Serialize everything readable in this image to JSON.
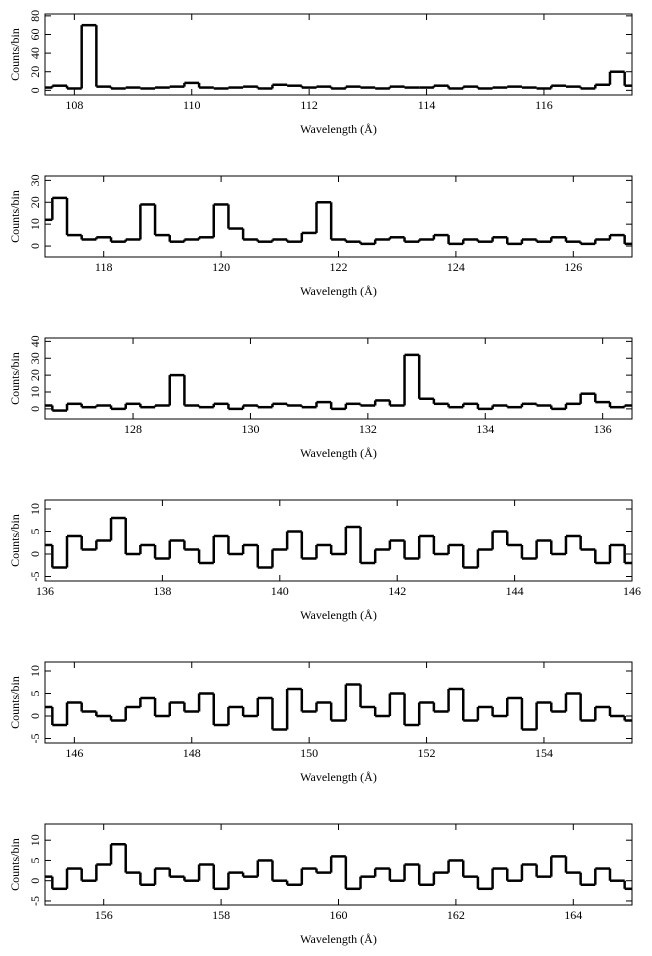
{
  "chart_data": [
    {
      "type": "line",
      "step": true,
      "color": "#000000",
      "xlabel": "Wavelength (Å)",
      "ylabel": "Counts/bin",
      "xlim": [
        107.5,
        117.5
      ],
      "xticks": [
        108,
        110,
        112,
        114,
        116
      ],
      "ylim": [
        -5,
        82
      ],
      "yticks": [
        0,
        20,
        40,
        60,
        80
      ],
      "x": [
        107.5,
        107.75,
        108,
        108.25,
        108.5,
        108.75,
        109,
        109.25,
        109.5,
        109.75,
        110,
        110.25,
        110.5,
        110.75,
        111,
        111.25,
        111.5,
        111.75,
        112,
        112.25,
        112.5,
        112.75,
        113,
        113.25,
        113.5,
        113.75,
        114,
        114.25,
        114.5,
        114.75,
        115,
        115.25,
        115.5,
        115.75,
        116,
        116.25,
        116.5,
        116.75,
        117,
        117.25,
        117.5
      ],
      "values": [
        3,
        5,
        2,
        70,
        4,
        2,
        3,
        2,
        3,
        4,
        8,
        3,
        2,
        3,
        4,
        2,
        6,
        5,
        3,
        4,
        2,
        4,
        3,
        2,
        4,
        3,
        3,
        5,
        2,
        4,
        2,
        3,
        4,
        3,
        2,
        5,
        4,
        2,
        6,
        20,
        5
      ]
    },
    {
      "type": "line",
      "step": true,
      "color": "#000000",
      "xlabel": "Wavelength (Å)",
      "ylabel": "Counts/bin",
      "xlim": [
        117,
        127
      ],
      "xticks": [
        118,
        120,
        122,
        124,
        126
      ],
      "ylim": [
        -5,
        32
      ],
      "yticks": [
        0,
        10,
        20,
        30
      ],
      "x": [
        117,
        117.25,
        117.5,
        117.75,
        118,
        118.25,
        118.5,
        118.75,
        119,
        119.25,
        119.5,
        119.75,
        120,
        120.25,
        120.5,
        120.75,
        121,
        121.25,
        121.5,
        121.75,
        122,
        122.25,
        122.5,
        122.75,
        123,
        123.25,
        123.5,
        123.75,
        124,
        124.25,
        124.5,
        124.75,
        125,
        125.25,
        125.5,
        125.75,
        126,
        126.25,
        126.5,
        126.75,
        127
      ],
      "values": [
        12,
        22,
        5,
        3,
        4,
        2,
        3,
        19,
        5,
        2,
        3,
        4,
        19,
        8,
        3,
        2,
        3,
        2,
        6,
        20,
        3,
        2,
        1,
        3,
        4,
        2,
        3,
        5,
        1,
        3,
        2,
        4,
        1,
        3,
        2,
        4,
        2,
        1,
        3,
        5,
        1
      ]
    },
    {
      "type": "line",
      "step": true,
      "color": "#000000",
      "xlabel": "Wavelength (Å)",
      "ylabel": "Counts/bin",
      "xlim": [
        126.5,
        136.5
      ],
      "xticks": [
        128,
        130,
        132,
        134,
        136
      ],
      "ylim": [
        -6,
        42
      ],
      "yticks": [
        0,
        10,
        20,
        30,
        40
      ],
      "x": [
        126.5,
        126.75,
        127,
        127.25,
        127.5,
        127.75,
        128,
        128.25,
        128.5,
        128.75,
        129,
        129.25,
        129.5,
        129.75,
        130,
        130.25,
        130.5,
        130.75,
        131,
        131.25,
        131.5,
        131.75,
        132,
        132.25,
        132.5,
        132.75,
        133,
        133.25,
        133.5,
        133.75,
        134,
        134.25,
        134.5,
        134.75,
        135,
        135.25,
        135.5,
        135.75,
        136,
        136.25,
        136.5
      ],
      "values": [
        2,
        -1,
        3,
        1,
        2,
        0,
        3,
        1,
        2,
        20,
        2,
        1,
        3,
        0,
        2,
        1,
        3,
        2,
        1,
        4,
        0,
        3,
        2,
        5,
        2,
        32,
        6,
        3,
        1,
        3,
        0,
        2,
        1,
        3,
        2,
        0,
        3,
        9,
        4,
        1,
        2
      ]
    },
    {
      "type": "line",
      "step": true,
      "color": "#000000",
      "xlabel": "Wavelength (Å)",
      "ylabel": "Counts/bin",
      "xlim": [
        136,
        146
      ],
      "xticks": [
        136,
        138,
        140,
        142,
        144,
        146
      ],
      "ylim": [
        -6,
        12
      ],
      "yticks": [
        -5,
        0,
        5,
        10
      ],
      "x": [
        136,
        136.25,
        136.5,
        136.75,
        137,
        137.25,
        137.5,
        137.75,
        138,
        138.25,
        138.5,
        138.75,
        139,
        139.25,
        139.5,
        139.75,
        140,
        140.25,
        140.5,
        140.75,
        141,
        141.25,
        141.5,
        141.75,
        142,
        142.25,
        142.5,
        142.75,
        143,
        143.25,
        143.5,
        143.75,
        144,
        144.25,
        144.5,
        144.75,
        145,
        145.25,
        145.5,
        145.75,
        146
      ],
      "values": [
        2,
        -3,
        4,
        1,
        3,
        8,
        0,
        2,
        -1,
        3,
        1,
        -2,
        4,
        0,
        2,
        -3,
        1,
        5,
        -1,
        2,
        0,
        6,
        -2,
        1,
        3,
        -1,
        4,
        0,
        2,
        -3,
        1,
        5,
        2,
        -1,
        3,
        0,
        4,
        1,
        -2,
        2,
        -2
      ]
    },
    {
      "type": "line",
      "step": true,
      "color": "#000000",
      "xlabel": "Wavelength (Å)",
      "ylabel": "Counts/bin",
      "xlim": [
        145.5,
        155.5
      ],
      "xticks": [
        146,
        148,
        150,
        152,
        154
      ],
      "ylim": [
        -6,
        12
      ],
      "yticks": [
        -5,
        0,
        5,
        10
      ],
      "x": [
        145.5,
        145.75,
        146,
        146.25,
        146.5,
        146.75,
        147,
        147.25,
        147.5,
        147.75,
        148,
        148.25,
        148.5,
        148.75,
        149,
        149.25,
        149.5,
        149.75,
        150,
        150.25,
        150.5,
        150.75,
        151,
        151.25,
        151.5,
        151.75,
        152,
        152.25,
        152.5,
        152.75,
        153,
        153.25,
        153.5,
        153.75,
        154,
        154.25,
        154.5,
        154.75,
        155,
        155.25,
        155.5
      ],
      "values": [
        2,
        -2,
        3,
        1,
        0,
        -1,
        2,
        4,
        0,
        3,
        1,
        5,
        -2,
        2,
        0,
        4,
        -3,
        6,
        1,
        3,
        -1,
        7,
        2,
        0,
        5,
        -2,
        3,
        1,
        6,
        -1,
        2,
        0,
        4,
        -3,
        3,
        1,
        5,
        -1,
        2,
        0,
        -1
      ]
    },
    {
      "type": "line",
      "step": true,
      "color": "#000000",
      "xlabel": "Wavelength (Å)",
      "ylabel": "Counts/bin",
      "xlim": [
        155,
        165
      ],
      "xticks": [
        156,
        158,
        160,
        162,
        164
      ],
      "ylim": [
        -6,
        14
      ],
      "yticks": [
        -5,
        0,
        5,
        10
      ],
      "x": [
        155,
        155.25,
        155.5,
        155.75,
        156,
        156.25,
        156.5,
        156.75,
        157,
        157.25,
        157.5,
        157.75,
        158,
        158.25,
        158.5,
        158.75,
        159,
        159.25,
        159.5,
        159.75,
        160,
        160.25,
        160.5,
        160.75,
        161,
        161.25,
        161.5,
        161.75,
        162,
        162.25,
        162.5,
        162.75,
        163,
        163.25,
        163.5,
        163.75,
        164,
        164.25,
        164.5,
        164.75,
        165
      ],
      "values": [
        1,
        -2,
        3,
        0,
        4,
        9,
        2,
        -1,
        3,
        1,
        0,
        4,
        -2,
        2,
        1,
        5,
        0,
        -1,
        3,
        2,
        6,
        -2,
        1,
        3,
        0,
        4,
        -1,
        2,
        5,
        1,
        -2,
        3,
        0,
        4,
        1,
        6,
        2,
        -1,
        3,
        0,
        -2
      ]
    }
  ]
}
